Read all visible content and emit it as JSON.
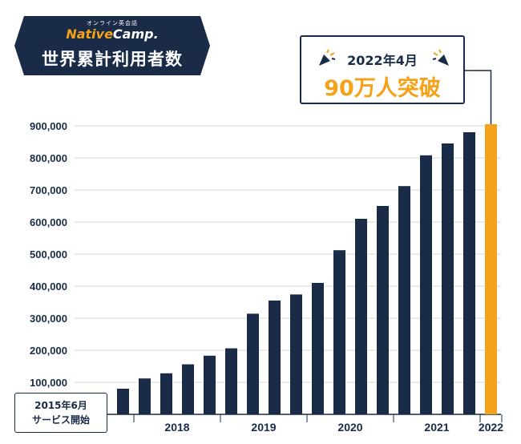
{
  "header": {
    "brand_sub": "オンライン英会話",
    "brand_native": "Native",
    "brand_camp": "Camp.",
    "title": "世界累計利用者数"
  },
  "callout": {
    "date": "2022年4月",
    "milestone": "90万人突破"
  },
  "start_note": {
    "line1": "2015年6月",
    "line2": "サービス開始"
  },
  "colors": {
    "navy": "#1a2b47",
    "accent": "#f3a21a",
    "grid": "#d9d9d9"
  },
  "chart_data": {
    "type": "bar",
    "title": "世界累計利用者数",
    "ylim": [
      0,
      900000
    ],
    "yticks": [
      "100,000",
      "200,000",
      "300,000",
      "400,000",
      "500,000",
      "600,000",
      "700,000",
      "800,000",
      "900,000"
    ],
    "ytick_values": [
      100000,
      200000,
      300000,
      400000,
      500000,
      600000,
      700000,
      800000,
      900000
    ],
    "values": [
      80000,
      112000,
      128000,
      156000,
      183000,
      206000,
      314000,
      355000,
      374000,
      410000,
      512000,
      610000,
      650000,
      712000,
      808000,
      845000,
      880000,
      905000
    ],
    "highlight_index": 17,
    "year_groups": [
      {
        "label": "2018",
        "start": 1,
        "end": 4
      },
      {
        "label": "2019",
        "start": 5,
        "end": 8
      },
      {
        "label": "2020",
        "start": 9,
        "end": 12
      },
      {
        "label": "2021",
        "start": 13,
        "end": 16
      },
      {
        "label": "2022",
        "start": 17,
        "end": 17
      }
    ]
  }
}
